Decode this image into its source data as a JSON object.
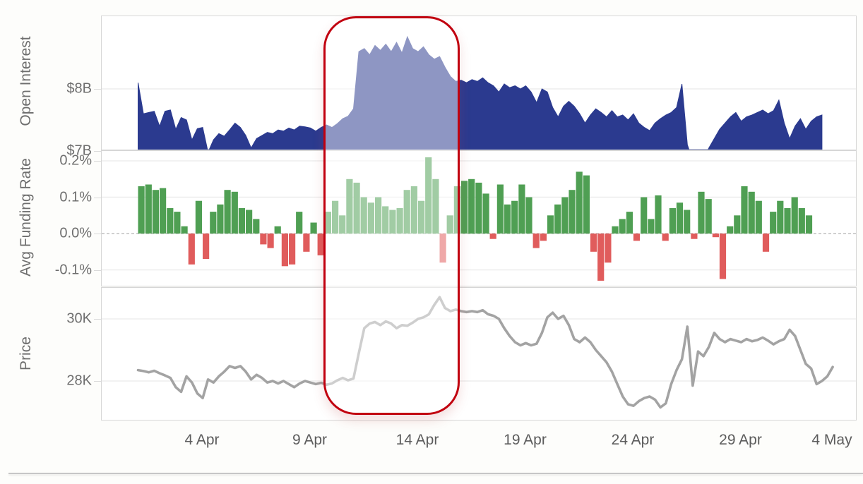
{
  "colors": {
    "open_interest_fill": "#2b3a8f",
    "funding_positive": "#4f9f53",
    "funding_negative": "#e05c5c",
    "price_line": "#a3a3a3",
    "gridline": "#ededed",
    "panel_border": "#d6d6d6",
    "zero_dash": "#b4b4b4",
    "highlight_border": "#c1000f",
    "axis_text": "#6e6e6e"
  },
  "x_axis": {
    "tick_labels": [
      "4 Apr",
      "9 Apr",
      "14 Apr",
      "19 Apr",
      "24 Apr",
      "29 Apr",
      "4 May"
    ],
    "tick_days": [
      3,
      8,
      13,
      18,
      23,
      28,
      33
    ]
  },
  "panels": [
    {
      "title": "Open Interest",
      "ytick_labels": [
        "$8B",
        "$7B"
      ],
      "ytick_values": [
        8,
        7
      ]
    },
    {
      "title": "Avg Funding Rate",
      "ytick_labels": [
        "0.2%",
        "0.1%",
        "0.0%",
        "-0.1%"
      ],
      "ytick_values": [
        0.2,
        0.1,
        0.0,
        -0.1
      ]
    },
    {
      "title": "Price",
      "ytick_labels": [
        "30K",
        "28K"
      ],
      "ytick_values": [
        30,
        28
      ]
    }
  ],
  "highlight": {
    "from_label": "10 Apr",
    "to_label": "15 Apr"
  },
  "chart_data": [
    {
      "type": "area",
      "title": "Open Interest",
      "ylabel": "Open Interest",
      "unit": "$B",
      "ylim": [
        6.77,
        8.93
      ],
      "ytick_labels": [
        "$8B",
        "$7B"
      ],
      "x_start_day": 0,
      "x_step_days": 0.25,
      "x_day0_date": "1 Apr",
      "values": [
        8.1,
        7.6,
        7.62,
        7.64,
        7.4,
        7.64,
        7.66,
        7.35,
        7.54,
        7.5,
        7.18,
        7.36,
        7.38,
        6.98,
        7.18,
        7.28,
        7.24,
        7.34,
        7.45,
        7.38,
        7.25,
        7.05,
        7.2,
        7.25,
        7.3,
        7.28,
        7.34,
        7.32,
        7.37,
        7.34,
        7.4,
        7.39,
        7.37,
        7.32,
        7.38,
        7.42,
        7.38,
        7.44,
        7.52,
        7.56,
        7.68,
        8.6,
        8.65,
        8.55,
        8.7,
        8.62,
        8.72,
        8.6,
        8.75,
        8.58,
        8.84,
        8.65,
        8.6,
        8.68,
        8.55,
        8.48,
        8.52,
        8.35,
        8.2,
        8.12,
        8.14,
        8.1,
        8.15,
        8.12,
        8.18,
        8.1,
        8.05,
        7.95,
        8.08,
        8.02,
        8.05,
        8.0,
        8.05,
        7.95,
        7.78,
        8.0,
        7.95,
        7.7,
        7.55,
        7.72,
        7.8,
        7.72,
        7.6,
        7.45,
        7.58,
        7.68,
        7.62,
        7.55,
        7.65,
        7.55,
        7.58,
        7.5,
        7.6,
        7.45,
        7.38,
        7.33,
        7.45,
        7.52,
        7.58,
        7.62,
        7.7,
        8.08,
        7.1,
        6.85,
        6.95,
        6.88,
        7.05,
        7.2,
        7.35,
        7.45,
        7.55,
        7.62,
        7.48,
        7.55,
        7.58,
        7.62,
        7.66,
        7.6,
        7.65,
        7.82,
        7.45,
        7.2,
        7.4,
        7.52,
        7.35,
        7.48,
        7.55,
        7.58
      ]
    },
    {
      "type": "bar",
      "title": "Avg Funding Rate",
      "ylabel": "Avg Funding Rate",
      "unit": "%",
      "ylim": [
        -0.143,
        0.23
      ],
      "ytick_labels": [
        "0.2%",
        "0.1%",
        "0.0%",
        "-0.1%"
      ],
      "x_start_day": 0,
      "x_step_days": 0.3333,
      "x_day0_date": "1 Apr",
      "values": [
        0.13,
        0.135,
        0.12,
        0.125,
        0.07,
        0.06,
        0.02,
        -0.085,
        0.09,
        -0.07,
        0.06,
        0.08,
        0.12,
        0.115,
        0.07,
        0.065,
        0.04,
        -0.03,
        -0.04,
        0.02,
        -0.09,
        -0.085,
        0.06,
        -0.05,
        0.03,
        -0.06,
        0.06,
        0.09,
        0.05,
        0.15,
        0.14,
        0.1,
        0.085,
        0.1,
        0.075,
        0.065,
        0.07,
        0.12,
        0.13,
        0.09,
        0.21,
        0.15,
        -0.08,
        0.05,
        0.13,
        0.145,
        0.15,
        0.14,
        0.11,
        -0.015,
        0.135,
        0.08,
        0.09,
        0.135,
        0.1,
        -0.04,
        -0.02,
        0.05,
        0.08,
        0.1,
        0.12,
        0.17,
        0.16,
        -0.05,
        -0.13,
        -0.08,
        0.02,
        0.04,
        0.06,
        -0.02,
        0.1,
        0.04,
        0.105,
        -0.02,
        0.07,
        0.085,
        0.065,
        -0.015,
        0.115,
        0.095,
        -0.01,
        -0.125,
        0.02,
        0.05,
        0.13,
        0.115,
        0.09,
        -0.05,
        0.06,
        0.09,
        0.07,
        0.1,
        0.07,
        0.05
      ]
    },
    {
      "type": "line",
      "title": "Price",
      "ylabel": "Price",
      "unit": "K",
      "ylim": [
        26.75,
        31.02
      ],
      "ytick_labels": [
        "30K",
        "28K"
      ],
      "x_start_day": 0,
      "x_step_days": 0.25,
      "x_day0_date": "1 Apr",
      "values": [
        28.35,
        28.32,
        28.28,
        28.33,
        28.25,
        28.18,
        28.1,
        27.8,
        27.65,
        28.15,
        27.95,
        27.6,
        27.45,
        28.05,
        27.95,
        28.15,
        28.3,
        28.48,
        28.42,
        28.48,
        28.3,
        28.05,
        28.2,
        28.1,
        27.95,
        28.0,
        27.92,
        28.0,
        27.9,
        27.8,
        27.92,
        28.0,
        27.95,
        27.9,
        27.94,
        27.88,
        27.92,
        28.02,
        28.1,
        28.02,
        28.08,
        28.9,
        29.7,
        29.85,
        29.9,
        29.8,
        29.92,
        29.85,
        29.7,
        29.8,
        29.78,
        29.88,
        30.0,
        30.05,
        30.15,
        30.45,
        30.7,
        30.35,
        30.25,
        30.3,
        30.25,
        30.22,
        30.25,
        30.22,
        30.28,
        30.15,
        30.1,
        30.0,
        29.7,
        29.45,
        29.25,
        29.15,
        29.22,
        29.15,
        29.2,
        29.55,
        30.05,
        30.2,
        30.0,
        30.1,
        29.8,
        29.35,
        29.25,
        29.4,
        29.25,
        29.0,
        28.8,
        28.6,
        28.3,
        27.9,
        27.5,
        27.25,
        27.2,
        27.35,
        27.45,
        27.5,
        27.4,
        27.15,
        27.28,
        27.9,
        28.35,
        28.7,
        29.75,
        27.85,
        28.95,
        28.8,
        29.1,
        29.55,
        29.35,
        29.25,
        29.35,
        29.3,
        29.25,
        29.35,
        29.28,
        29.32,
        29.4,
        29.3,
        29.18,
        29.28,
        29.35,
        29.65,
        29.45,
        29.0,
        28.55,
        28.4,
        27.9,
        28.0,
        28.15,
        28.45
      ]
    }
  ]
}
